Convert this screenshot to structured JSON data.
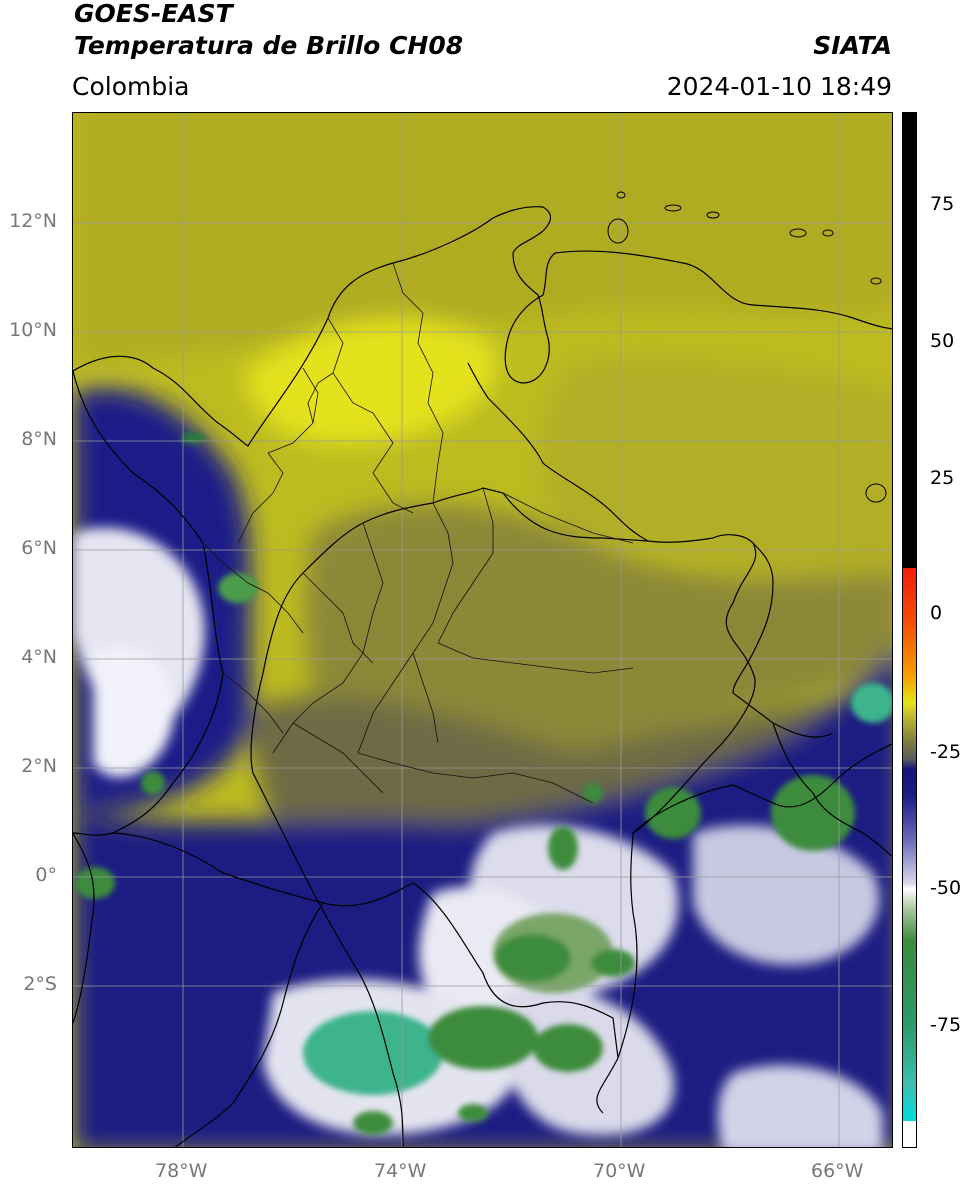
{
  "header": {
    "satellite": "GOES-EAST",
    "product": "Temperatura de Brillo CH08",
    "region": "Colombia",
    "source": "SIATA",
    "datetime": "2024-01-10 18:49"
  },
  "map": {
    "lat_ticks": [
      "12°N",
      "10°N",
      "8°N",
      "6°N",
      "4°N",
      "2°N",
      "0°",
      "2°S"
    ],
    "lon_ticks": [
      "78°W",
      "74°W",
      "70°W",
      "66°W"
    ],
    "lon_range": [
      -80,
      -65
    ],
    "lat_range": [
      -4.9,
      14.1
    ],
    "gridlines": true,
    "colors": {
      "warm_dry": "#c8c41c",
      "very_warm": "#e6e41a",
      "olive": "#7d7a3c",
      "moist_blue": "#1c1c85",
      "cold_white": "#e8e8f2",
      "very_cold_green": "#3c8c3c",
      "coldest_teal": "#3cb48c"
    }
  },
  "colorbar": {
    "ticks": [
      "75",
      "50",
      "25",
      "0",
      "-25",
      "-50",
      "-75"
    ],
    "range": [
      -95,
      90
    ],
    "colors": {
      "top": "#000000",
      "red": "#f01e0a",
      "orange": "#f5a000",
      "yellow": "#e6e41a",
      "olive": "#7a7840",
      "dark_blue": "#14147a",
      "white": "#ffffff",
      "green": "#3c8c3c",
      "cyan": "#00dcdc"
    }
  }
}
